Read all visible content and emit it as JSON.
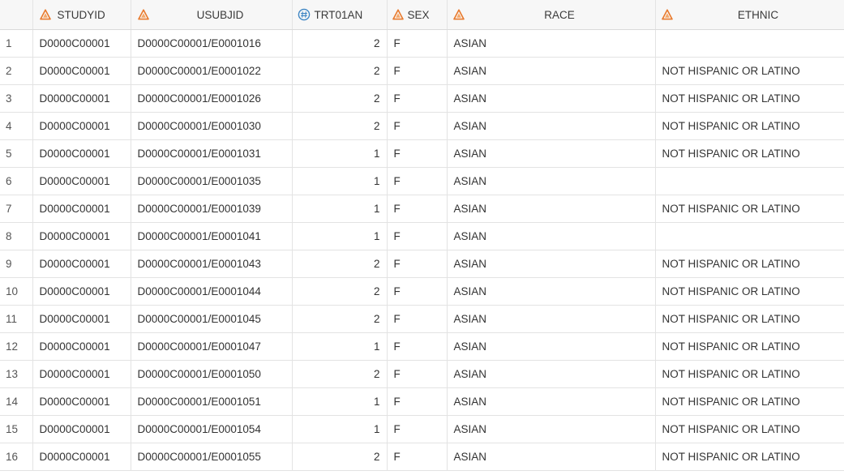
{
  "table": {
    "columns": [
      {
        "key": "STUDYID",
        "label": "STUDYID",
        "type": "char",
        "icon": "character-column-icon"
      },
      {
        "key": "USUBJID",
        "label": "USUBJID",
        "type": "char",
        "icon": "character-column-icon"
      },
      {
        "key": "TRT01AN",
        "label": "TRT01AN",
        "type": "num",
        "icon": "numeric-column-icon"
      },
      {
        "key": "SEX",
        "label": "SEX",
        "type": "char",
        "icon": "character-column-icon"
      },
      {
        "key": "RACE",
        "label": "RACE",
        "type": "char",
        "icon": "character-column-icon"
      },
      {
        "key": "ETHNIC",
        "label": "ETHNIC",
        "type": "char",
        "icon": "character-column-icon"
      }
    ],
    "colors": {
      "char_icon": "#e8792c",
      "num_icon": "#3f86c4",
      "header_bg": "#f7f7f7",
      "grid_line": "#e3e3e3"
    },
    "rows": [
      {
        "n": "1",
        "STUDYID": "D0000C00001",
        "USUBJID": "D0000C00001/E0001016",
        "TRT01AN": "2",
        "SEX": "F",
        "RACE": "ASIAN",
        "ETHNIC": ""
      },
      {
        "n": "2",
        "STUDYID": "D0000C00001",
        "USUBJID": "D0000C00001/E0001022",
        "TRT01AN": "2",
        "SEX": "F",
        "RACE": "ASIAN",
        "ETHNIC": "NOT HISPANIC OR LATINO"
      },
      {
        "n": "3",
        "STUDYID": "D0000C00001",
        "USUBJID": "D0000C00001/E0001026",
        "TRT01AN": "2",
        "SEX": "F",
        "RACE": "ASIAN",
        "ETHNIC": "NOT HISPANIC OR LATINO"
      },
      {
        "n": "4",
        "STUDYID": "D0000C00001",
        "USUBJID": "D0000C00001/E0001030",
        "TRT01AN": "2",
        "SEX": "F",
        "RACE": "ASIAN",
        "ETHNIC": "NOT HISPANIC OR LATINO"
      },
      {
        "n": "5",
        "STUDYID": "D0000C00001",
        "USUBJID": "D0000C00001/E0001031",
        "TRT01AN": "1",
        "SEX": "F",
        "RACE": "ASIAN",
        "ETHNIC": "NOT HISPANIC OR LATINO"
      },
      {
        "n": "6",
        "STUDYID": "D0000C00001",
        "USUBJID": "D0000C00001/E0001035",
        "TRT01AN": "1",
        "SEX": "F",
        "RACE": "ASIAN",
        "ETHNIC": ""
      },
      {
        "n": "7",
        "STUDYID": "D0000C00001",
        "USUBJID": "D0000C00001/E0001039",
        "TRT01AN": "1",
        "SEX": "F",
        "RACE": "ASIAN",
        "ETHNIC": "NOT HISPANIC OR LATINO"
      },
      {
        "n": "8",
        "STUDYID": "D0000C00001",
        "USUBJID": "D0000C00001/E0001041",
        "TRT01AN": "1",
        "SEX": "F",
        "RACE": "ASIAN",
        "ETHNIC": ""
      },
      {
        "n": "9",
        "STUDYID": "D0000C00001",
        "USUBJID": "D0000C00001/E0001043",
        "TRT01AN": "2",
        "SEX": "F",
        "RACE": "ASIAN",
        "ETHNIC": "NOT HISPANIC OR LATINO"
      },
      {
        "n": "10",
        "STUDYID": "D0000C00001",
        "USUBJID": "D0000C00001/E0001044",
        "TRT01AN": "2",
        "SEX": "F",
        "RACE": "ASIAN",
        "ETHNIC": "NOT HISPANIC OR LATINO"
      },
      {
        "n": "11",
        "STUDYID": "D0000C00001",
        "USUBJID": "D0000C00001/E0001045",
        "TRT01AN": "2",
        "SEX": "F",
        "RACE": "ASIAN",
        "ETHNIC": "NOT HISPANIC OR LATINO"
      },
      {
        "n": "12",
        "STUDYID": "D0000C00001",
        "USUBJID": "D0000C00001/E0001047",
        "TRT01AN": "1",
        "SEX": "F",
        "RACE": "ASIAN",
        "ETHNIC": "NOT HISPANIC OR LATINO"
      },
      {
        "n": "13",
        "STUDYID": "D0000C00001",
        "USUBJID": "D0000C00001/E0001050",
        "TRT01AN": "2",
        "SEX": "F",
        "RACE": "ASIAN",
        "ETHNIC": "NOT HISPANIC OR LATINO"
      },
      {
        "n": "14",
        "STUDYID": "D0000C00001",
        "USUBJID": "D0000C00001/E0001051",
        "TRT01AN": "1",
        "SEX": "F",
        "RACE": "ASIAN",
        "ETHNIC": "NOT HISPANIC OR LATINO"
      },
      {
        "n": "15",
        "STUDYID": "D0000C00001",
        "USUBJID": "D0000C00001/E0001054",
        "TRT01AN": "1",
        "SEX": "F",
        "RACE": "ASIAN",
        "ETHNIC": "NOT HISPANIC OR LATINO"
      },
      {
        "n": "16",
        "STUDYID": "D0000C00001",
        "USUBJID": "D0000C00001/E0001055",
        "TRT01AN": "2",
        "SEX": "F",
        "RACE": "ASIAN",
        "ETHNIC": "NOT HISPANIC OR LATINO"
      }
    ]
  }
}
